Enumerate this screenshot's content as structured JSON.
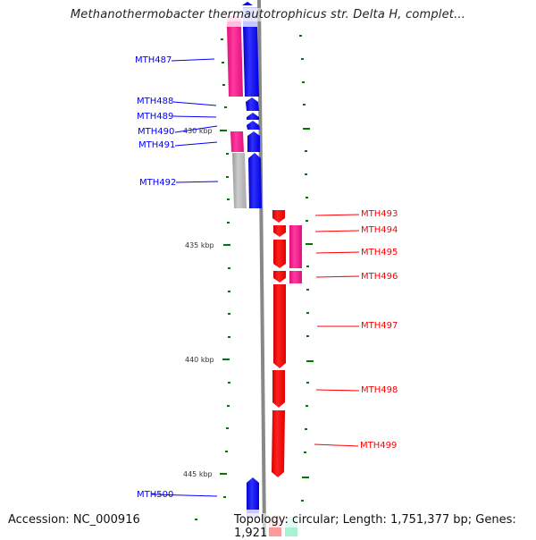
{
  "title": "Methanothermobacter thermautotrophicus str. Delta H, complet...",
  "accession": "Accession: NC_000916",
  "summary": "Topology: circular; Length: 1,751,377 bp; Genes: 1,921",
  "ticks": [
    "430 kbp",
    "435 kbp",
    "440 kbp",
    "445 kbp"
  ],
  "genes_left": [
    "MTH487",
    "MTH488",
    "MTH489",
    "MTH490",
    "MTH491",
    "MTH492",
    "MTH500"
  ],
  "genes_right": [
    "MTH493",
    "MTH494",
    "MTH495",
    "MTH496",
    "MTH497",
    "MTH498",
    "MTH499"
  ],
  "colors": {
    "forward": "#0000ff",
    "reverse": "#ff0000",
    "pink": "#ff1493",
    "gray": "#bbbbbb",
    "tick": "#007700"
  }
}
